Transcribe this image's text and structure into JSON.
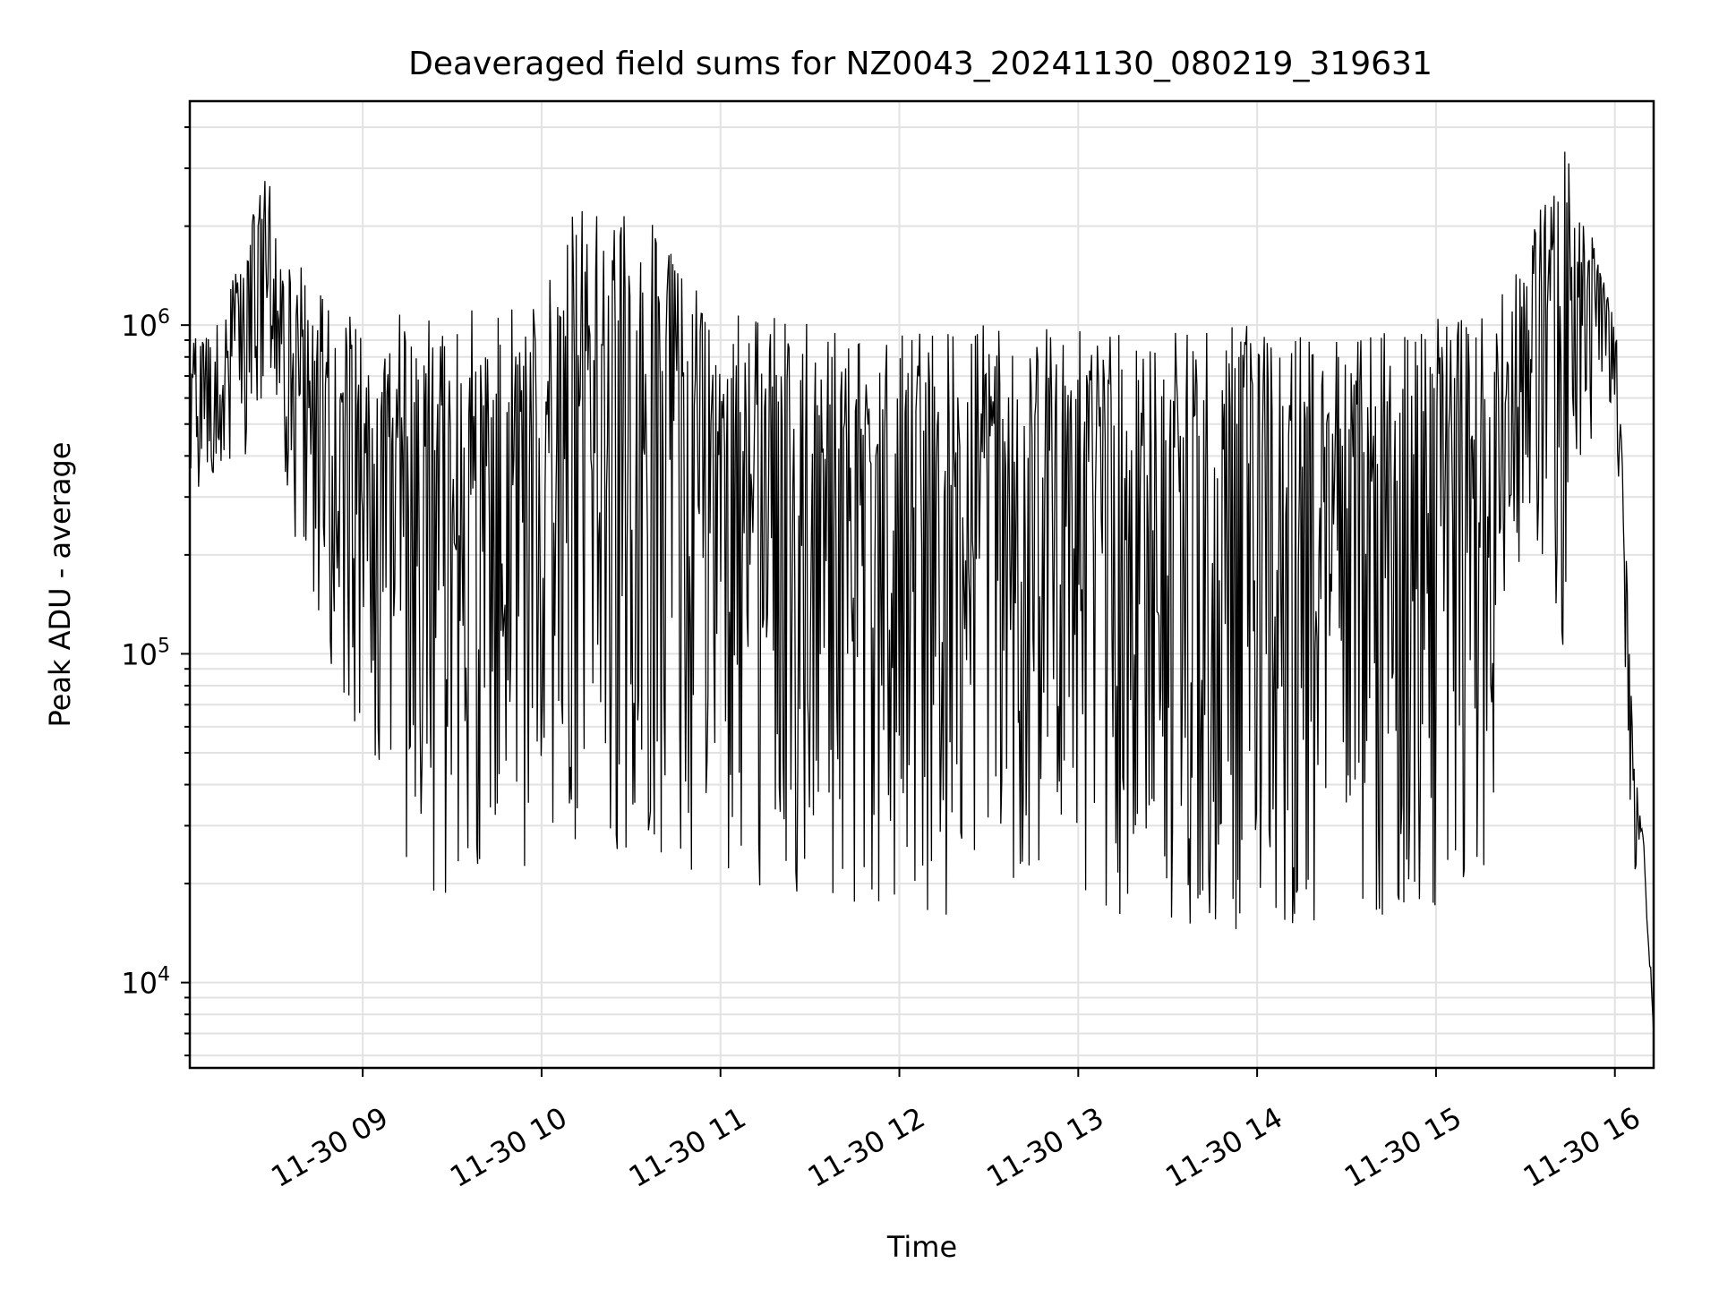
{
  "chart_data": {
    "type": "line",
    "title": "Deaveraged field sums for NZ0043_20241130_080219_319631",
    "xlabel": "Time",
    "ylabel": "Peak ADU - average",
    "y_scale": "log",
    "ylim": [
      5500,
      4800000
    ],
    "xlim": [
      "2024-11-30T08:02:00",
      "2024-11-30T16:13:00"
    ],
    "grid": true,
    "line_color": "#000000",
    "x_tick_labels": [
      "11-30 09",
      "11-30 10",
      "11-30 11",
      "11-30 12",
      "11-30 13",
      "11-30 14",
      "11-30 15",
      "11-30 16"
    ],
    "x_ticks": [
      "2024-11-30T09:00:00",
      "2024-11-30T10:00:00",
      "2024-11-30T11:00:00",
      "2024-11-30T12:00:00",
      "2024-11-30T13:00:00",
      "2024-11-30T14:00:00",
      "2024-11-30T15:00:00",
      "2024-11-30T16:00:00"
    ],
    "y_tick_labels": [
      {
        "base": "10",
        "exp": "4",
        "value": 10000
      },
      {
        "base": "10",
        "exp": "5",
        "value": 100000
      },
      {
        "base": "10",
        "exp": "6",
        "value": 1000000
      }
    ],
    "series": [
      {
        "x": [
          "2024-11-30T08:02:00",
          "2024-11-30T08:10:00",
          "2024-11-30T08:20:00",
          "2024-11-30T08:28:00",
          "2024-11-30T08:32:00",
          "2024-11-30T08:40:00",
          "2024-11-30T08:50:00",
          "2024-11-30T09:00:00",
          "2024-11-30T09:15:00",
          "2024-11-30T09:30:00",
          "2024-11-30T10:00:00",
          "2024-11-30T10:10:00",
          "2024-11-30T10:33:00",
          "2024-11-30T11:00:00",
          "2024-11-30T12:00:00",
          "2024-11-30T13:00:00",
          "2024-11-30T13:24:00",
          "2024-11-30T14:00:00",
          "2024-11-30T15:00:00",
          "2024-11-30T15:20:00",
          "2024-11-30T15:30:00",
          "2024-11-30T15:43:00",
          "2024-11-30T15:55:00",
          "2024-11-30T16:00:00",
          "2024-11-30T16:02:00",
          "2024-11-30T16:04:00",
          "2024-11-30T16:06:00",
          "2024-11-30T16:08:00",
          "2024-11-30T16:10:00",
          "2024-11-30T16:13:00"
        ],
        "y_high": [
          900000,
          950000,
          1700000,
          3500000,
          1500000,
          1600000,
          1200000,
          1100000,
          1100000,
          1200000,
          1150000,
          2500000,
          2300000,
          1100000,
          1000000,
          1000000,
          950000,
          1000000,
          1050000,
          1300000,
          1700000,
          3700000,
          1700000,
          1200000,
          500000,
          180000,
          60000,
          35000,
          30000,
          7000
        ],
        "y_low": [
          300000,
          350000,
          380000,
          700000,
          380000,
          170000,
          85000,
          40000,
          18000,
          17000,
          24000,
          25000,
          22000,
          20000,
          16000,
          16000,
          12500,
          14000,
          17000,
          22000,
          300000,
          90000,
          700000,
          500000,
          180000,
          50000,
          25000,
          18000,
          20000,
          7000
        ]
      }
    ]
  }
}
